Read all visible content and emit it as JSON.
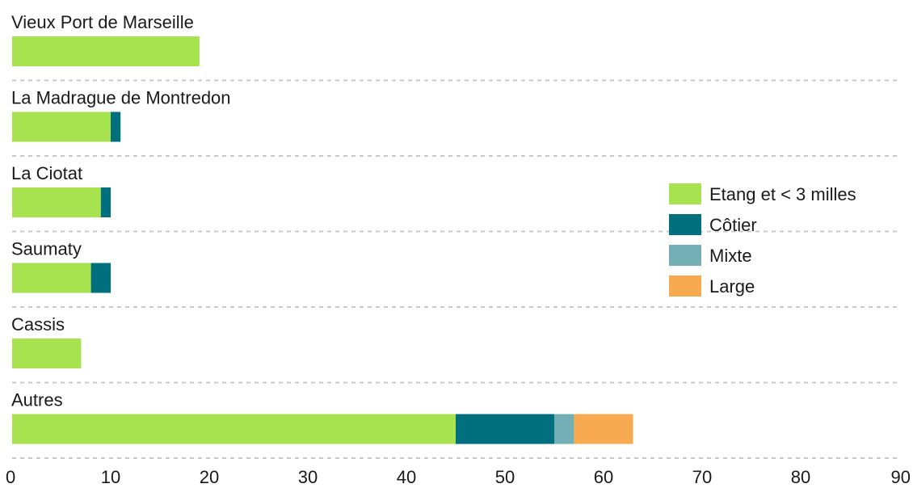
{
  "chart_data": {
    "type": "bar",
    "orientation": "horizontal",
    "stacked": true,
    "categories": [
      "Vieux Port de Marseille",
      "La Madrague de Montredon",
      "La Ciotat",
      "Saumaty",
      "Cassis",
      "Autres"
    ],
    "series": [
      {
        "name": "Etang et < 3 milles",
        "color": "#a6e34f",
        "values": [
          19,
          10,
          9,
          8,
          7,
          45
        ]
      },
      {
        "name": "Côtier",
        "color": "#00707e",
        "values": [
          0,
          1,
          1,
          2,
          0,
          10
        ]
      },
      {
        "name": "Mixte",
        "color": "#74afb6",
        "values": [
          0,
          0,
          0,
          0,
          0,
          2
        ]
      },
      {
        "name": "Large",
        "color": "#f7aa50",
        "values": [
          0,
          0,
          0,
          0,
          0,
          6
        ]
      }
    ],
    "xlim": [
      0,
      90
    ],
    "xticks": [
      0,
      10,
      20,
      30,
      40,
      50,
      60,
      70,
      80,
      90
    ],
    "legend_position": "right",
    "grid": false
  }
}
